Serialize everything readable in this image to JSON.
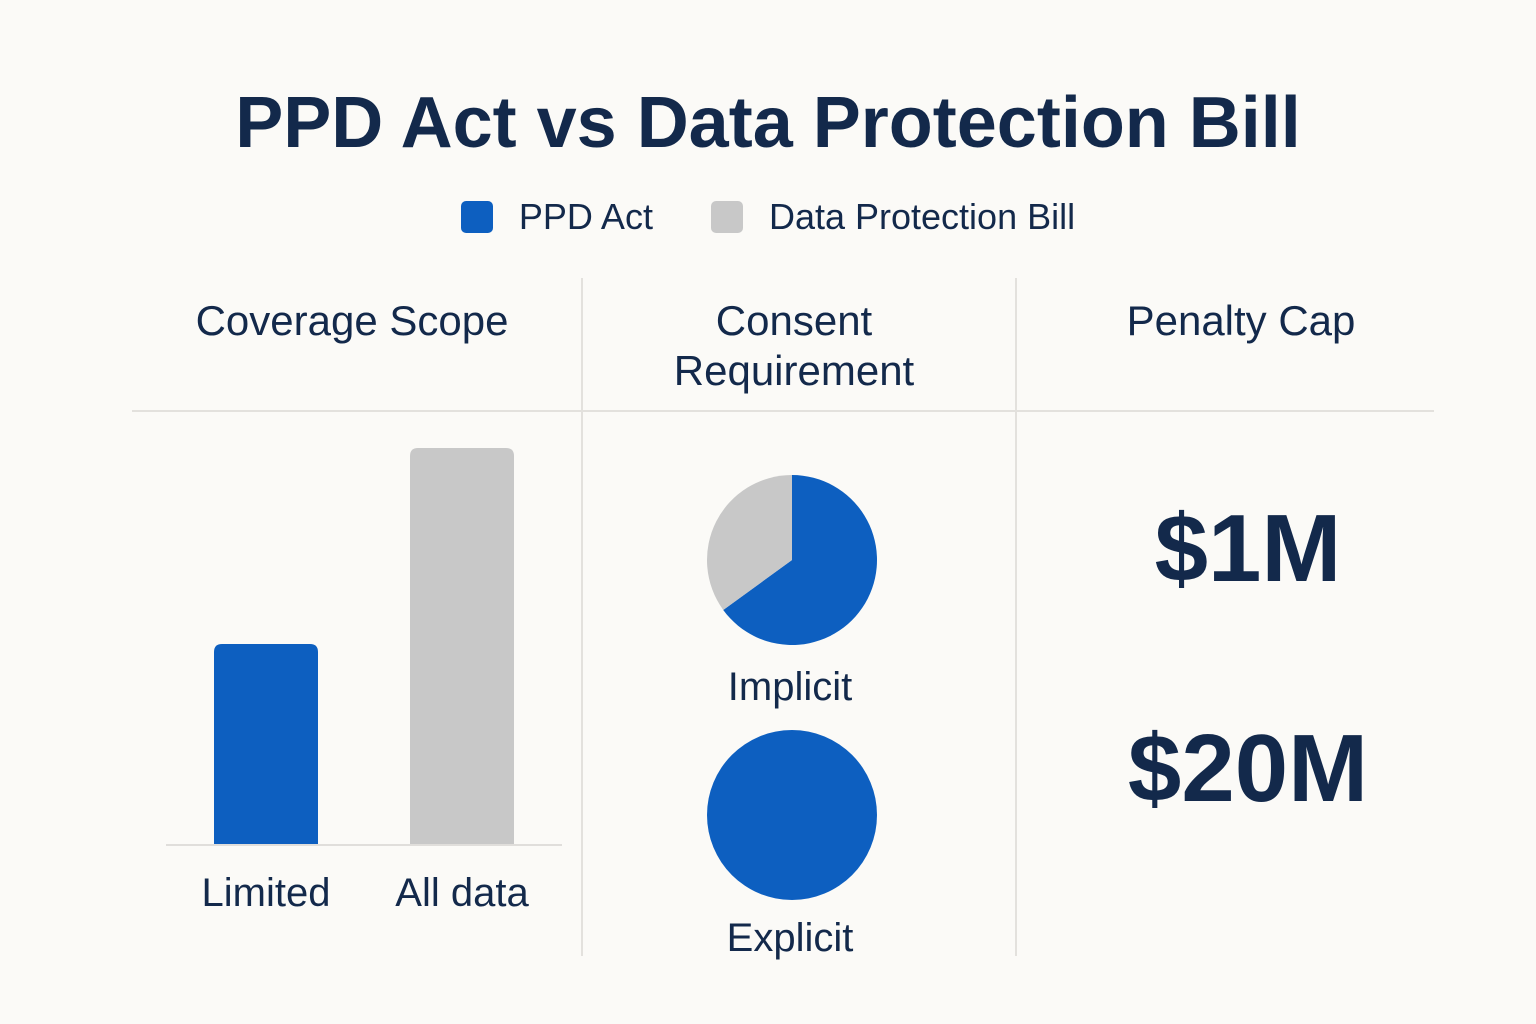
{
  "title": "PPD Act vs Data Protection Bill",
  "legend": [
    {
      "label": "PPD Act",
      "color": "#0d5fc0"
    },
    {
      "label": "Data Protection Bill",
      "color": "#c8c8c8"
    }
  ],
  "columns": {
    "coverage": "Coverage Scope",
    "consent_line1": "Consent",
    "consent_line2": "Requirement",
    "penalty": "Penalty Cap"
  },
  "chart_data": [
    {
      "type": "bar",
      "title": "Coverage Scope",
      "categories": [
        "Limited",
        "All data"
      ],
      "series": [
        {
          "name": "PPD Act",
          "values": [
            1,
            null
          ],
          "color": "#0d5fc0"
        },
        {
          "name": "Data Protection Bill",
          "values": [
            null,
            1.98
          ],
          "color": "#c8c8c8"
        }
      ],
      "values": [
        1,
        1.98
      ],
      "colors": [
        "#0d5fc0",
        "#c8c8c8"
      ],
      "ylim": [
        0,
        2
      ]
    },
    {
      "type": "pie",
      "title": "Consent Requirement",
      "pies": [
        {
          "label": "Implicit",
          "slices": [
            {
              "name": "PPD Act",
              "value": 65,
              "color": "#0d5fc0"
            },
            {
              "name": "Data Protection Bill",
              "value": 35,
              "color": "#c8c8c8"
            }
          ]
        },
        {
          "label": "Explicit",
          "slices": [
            {
              "name": "PPD Act",
              "value": 100,
              "color": "#0d5fc0"
            }
          ]
        }
      ]
    },
    {
      "type": "table",
      "title": "Penalty Cap",
      "values": [
        "$1M",
        "$20M"
      ]
    }
  ]
}
